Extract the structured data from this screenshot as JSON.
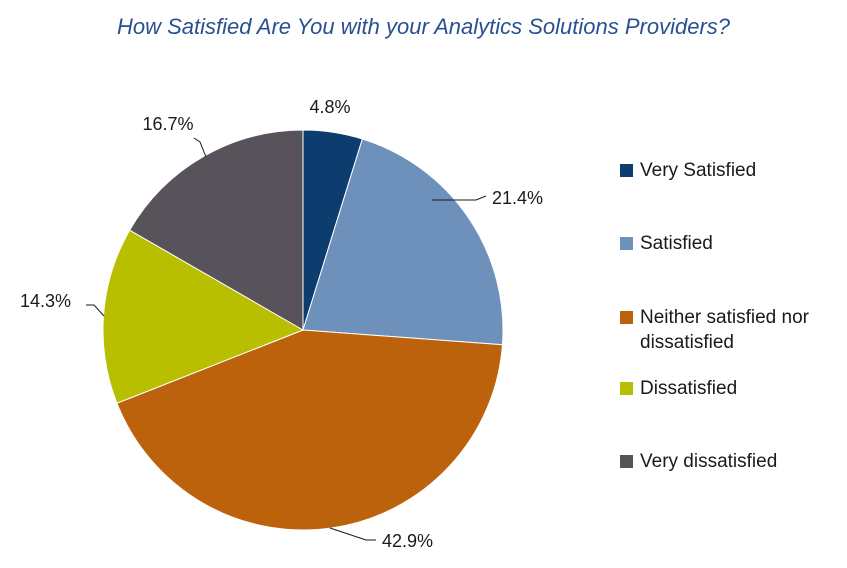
{
  "chart_data": {
    "type": "pie",
    "title": "How Satisfied Are You with your Analytics Solutions Providers?",
    "categories": [
      "Very Satisfied",
      "Satisfied",
      "Neither satisfied nor dissatisfied",
      "Dissatisfied",
      "Very dissatisfied"
    ],
    "values": [
      4.8,
      21.4,
      42.9,
      14.3,
      16.7
    ],
    "data_labels": [
      "4.8%",
      "21.4%",
      "42.9%",
      "14.3%",
      "16.7%"
    ],
    "colors": [
      "#0d3d6e",
      "#6e91bc",
      "#bd620c",
      "#b8be00",
      "#58535a"
    ],
    "legend_position": "right"
  }
}
